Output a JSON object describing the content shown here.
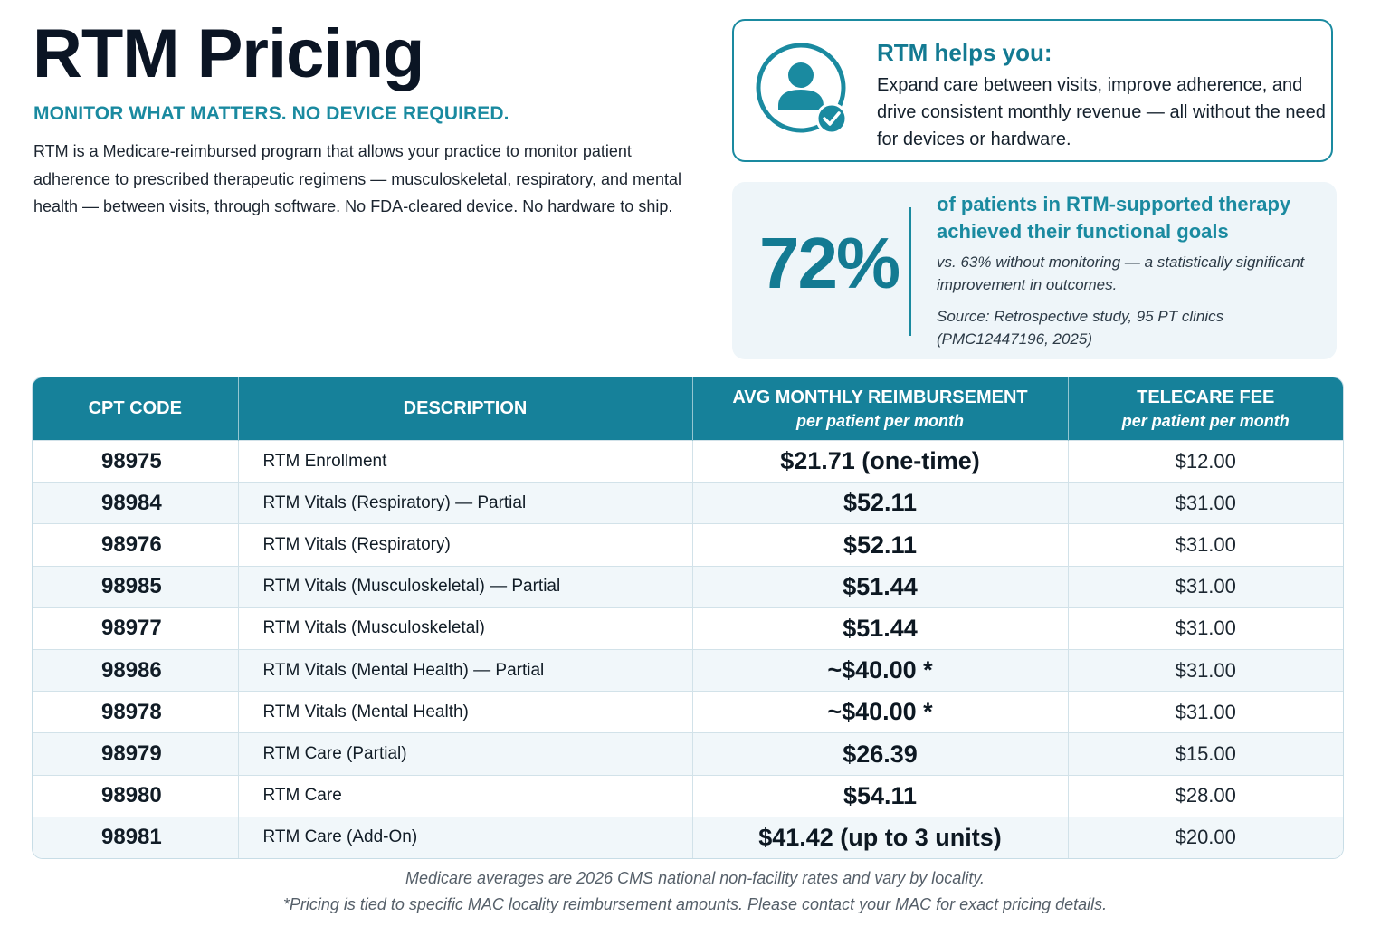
{
  "header": {
    "title": "RTM Pricing",
    "tagline": "MONITOR WHAT MATTERS. NO DEVICE REQUIRED.",
    "intro": "RTM is a Medicare-reimbursed program that allows your practice to monitor patient adherence to prescribed therapeutic regimens — musculoskeletal, respiratory, and mental health — between visits, through software. No FDA-cleared device. No hardware to ship."
  },
  "helps_card": {
    "icon": "user-check-icon",
    "title": "RTM helps you:",
    "text": "Expand care between visits, improve adherence, and drive consistent monthly revenue — all without the need for devices or hardware."
  },
  "stat_card": {
    "value": "72%",
    "headline": "of patients in RTM-supported therapy achieved their functional goals",
    "note": "vs. 63% without monitoring — a statistically significant improvement in outcomes.",
    "source": "Source: Retrospective study, 95 PT clinics (PMC12447196, 2025)"
  },
  "table": {
    "headers": [
      {
        "label": "CPT CODE",
        "sub": ""
      },
      {
        "label": "DESCRIPTION",
        "sub": ""
      },
      {
        "label": "AVG MONTHLY REIMBURSEMENT",
        "sub": "per patient per month"
      },
      {
        "label": "TELECARE FEE",
        "sub": "per patient per month"
      }
    ],
    "rows": [
      {
        "code": "98975",
        "description": "RTM Enrollment",
        "reimbursement": "$21.71 (one-time)",
        "fee": "$12.00"
      },
      {
        "code": "98984",
        "description": "RTM Vitals (Respiratory) — Partial",
        "reimbursement": "$52.11",
        "fee": "$31.00"
      },
      {
        "code": "98976",
        "description": "RTM Vitals (Respiratory)",
        "reimbursement": "$52.11",
        "fee": "$31.00"
      },
      {
        "code": "98985",
        "description": "RTM Vitals (Musculoskeletal) — Partial",
        "reimbursement": "$51.44",
        "fee": "$31.00"
      },
      {
        "code": "98977",
        "description": "RTM Vitals (Musculoskeletal)",
        "reimbursement": "$51.44",
        "fee": "$31.00"
      },
      {
        "code": "98986",
        "description": "RTM Vitals (Mental Health) — Partial",
        "reimbursement": "~$40.00 *",
        "fee": "$31.00"
      },
      {
        "code": "98978",
        "description": "RTM Vitals (Mental Health)",
        "reimbursement": "~$40.00 *",
        "fee": "$31.00"
      },
      {
        "code": "98979",
        "description": "RTM Care (Partial)",
        "reimbursement": "$26.39",
        "fee": "$15.00"
      },
      {
        "code": "98980",
        "description": "RTM Care",
        "reimbursement": "$54.11",
        "fee": "$28.00"
      },
      {
        "code": "98981",
        "description": "RTM Care (Add-On)",
        "reimbursement": "$41.42 (up to 3 units)",
        "fee": "$20.00"
      }
    ]
  },
  "footer": {
    "line1": "Medicare averages are 2026 CMS national non-facility rates and vary by locality.",
    "line2": "*Pricing is tied to specific MAC locality reimbursement amounts. Please contact your MAC for exact pricing details."
  },
  "colors": {
    "accent": "#1a8aa0",
    "header_bg": "#16819a",
    "stat_bg": "#eef5f9",
    "text_dark": "#0b1524"
  }
}
